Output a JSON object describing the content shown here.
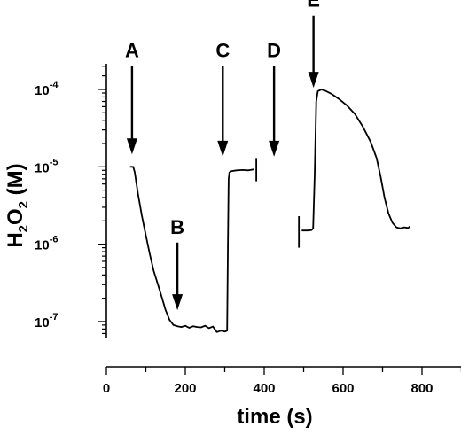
{
  "chart_data": {
    "type": "line",
    "xlabel": "time (s)",
    "ylabel": "H2O2 (M)",
    "ylabel_parts": {
      "main": "H",
      "sub1": "2",
      "mid": "O",
      "sub2": "2",
      "tail": " (M)"
    },
    "xlim": [
      0,
      900
    ],
    "ylim": [
      5e-08,
      0.0002
    ],
    "yscale": "log",
    "x_ticks": [
      0,
      200,
      400,
      600,
      800
    ],
    "x_tick_labels": [
      "0",
      "200",
      "400",
      "600",
      "800"
    ],
    "y_ticks": [
      {
        "value": 0.0001,
        "base": "10",
        "exp": "-4"
      },
      {
        "value": 1e-05,
        "base": "10",
        "exp": "-5"
      },
      {
        "value": 1e-06,
        "base": "10",
        "exp": "-6"
      },
      {
        "value": 1e-07,
        "base": "10",
        "exp": "-7"
      }
    ],
    "grid": false,
    "series": [
      {
        "segment": 1,
        "x": [
          60,
          68,
          72,
          80,
          90,
          100,
          110,
          120,
          130,
          140,
          150,
          160,
          170,
          180,
          190,
          200,
          210,
          220,
          230,
          240,
          250,
          260,
          270,
          280,
          290,
          300,
          306,
          308,
          310,
          312,
          318,
          330,
          345,
          360,
          375
        ],
        "y": [
          1e-05,
          1e-05,
          8.5e-06,
          4.5e-06,
          2.3e-06,
          1.3e-06,
          7.5e-07,
          4.5e-07,
          3.1e-07,
          2.1e-07,
          1.4e-07,
          1.05e-07,
          9e-08,
          8.7e-08,
          8.5e-08,
          8.8e-08,
          8.3e-08,
          8.7e-08,
          8.5e-08,
          8.4e-08,
          8.8e-08,
          8.2e-08,
          8.6e-08,
          7.3e-08,
          7.6e-08,
          7.4e-08,
          7.6e-08,
          1e-06,
          7e-06,
          8.5e-06,
          8.8e-06,
          9e-06,
          9.1e-06,
          9e-06,
          9.3e-06
        ]
      },
      {
        "segment": 2,
        "x": [
          495,
          510,
          520,
          524,
          528,
          532,
          536,
          545,
          555,
          570,
          590,
          610,
          630,
          650,
          670,
          685,
          695,
          705,
          715,
          725,
          735,
          745,
          755,
          765,
          770
        ],
        "y": [
          1.5e-06,
          1.5e-06,
          1.52e-06,
          1.6e-06,
          8e-06,
          7e-05,
          9.5e-05,
          0.0001,
          9.6e-05,
          8.8e-05,
          7.5e-05,
          6.2e-05,
          4.8e-05,
          3.3e-05,
          2.1e-05,
          1.3e-05,
          7.5e-06,
          4e-06,
          2.5e-06,
          1.9e-06,
          1.65e-06,
          1.6e-06,
          1.65e-06,
          1.62e-06,
          1.7e-06
        ]
      }
    ],
    "vertical_bars": [
      {
        "x": 380,
        "y_low": 6.5e-06,
        "y_high": 1.3e-05
      },
      {
        "x": 488,
        "y_low": 9e-07,
        "y_high": 2.3e-06
      }
    ],
    "annotations": [
      {
        "label": "A",
        "x": 65,
        "arrow_from_y": 0.0002,
        "arrow_to_y": 1.45e-05
      },
      {
        "label": "B",
        "x": 180,
        "arrow_from_y": 1.05e-06,
        "arrow_to_y": 1.4e-07
      },
      {
        "label": "C",
        "x": 295,
        "arrow_from_y": 0.0002,
        "arrow_to_y": 1.35e-05
      },
      {
        "label": "D",
        "x": 425,
        "arrow_from_y": 0.0002,
        "arrow_to_y": 1.35e-05
      },
      {
        "label": "E",
        "x": 525,
        "arrow_from_y": 0.0009,
        "arrow_to_y": 0.000105
      }
    ]
  }
}
